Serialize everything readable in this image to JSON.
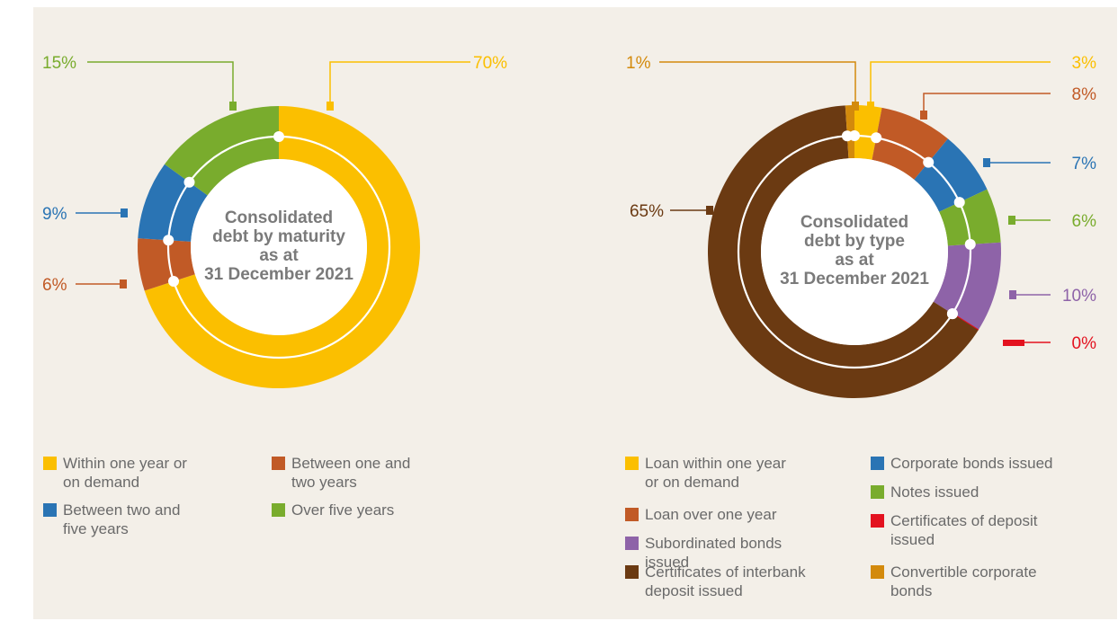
{
  "chart_data": [
    {
      "type": "pie",
      "title_lines": [
        "Consolidated",
        "debt by maturity",
        "as at",
        "31 December 2021"
      ],
      "segments": [
        {
          "key": "within1",
          "label": "Within one year or on demand",
          "label_lines": [
            "Within one year or",
            "on demand"
          ],
          "value": 70,
          "value_label": "70%",
          "color": "#fbbf00"
        },
        {
          "key": "between1and2",
          "label": "Between one and two years",
          "label_lines": [
            "Between one and",
            "two years"
          ],
          "value": 6,
          "value_label": "6%",
          "color": "#c15a26"
        },
        {
          "key": "between2and5",
          "label": "Between two and five years",
          "label_lines": [
            "Between two and",
            "five years"
          ],
          "value": 9,
          "value_label": "9%",
          "color": "#2a74b4"
        },
        {
          "key": "over5",
          "label": "Over five years",
          "label_lines": [
            "Over five years"
          ],
          "value": 15,
          "value_label": "15%",
          "color": "#79ac2d"
        }
      ]
    },
    {
      "type": "pie",
      "title_lines": [
        "Consolidated",
        "debt by type",
        "as at",
        "31 December 2021"
      ],
      "segments": [
        {
          "key": "loan_within",
          "label": "Loan within one year or on demand",
          "label_lines": [
            "Loan within one year",
            "or on demand"
          ],
          "value": 3,
          "value_label": "3%",
          "color": "#fbbf00"
        },
        {
          "key": "loan_over",
          "label": "Loan over one year",
          "label_lines": [
            "Loan over one year"
          ],
          "value": 8,
          "value_label": "8%",
          "color": "#c15a26"
        },
        {
          "key": "corporate_bonds",
          "label": "Corporate bonds issued",
          "label_lines": [
            "Corporate bonds issued"
          ],
          "value": 7,
          "value_label": "7%",
          "color": "#2a74b4"
        },
        {
          "key": "notes",
          "label": "Notes issued",
          "label_lines": [
            "Notes issued"
          ],
          "value": 6,
          "value_label": "6%",
          "color": "#79ac2d"
        },
        {
          "key": "subordinated",
          "label": "Subordinated bonds issued",
          "label_lines": [
            "Subordinated bonds issued"
          ],
          "value": 10,
          "value_label": "10%",
          "color": "#8e63a8"
        },
        {
          "key": "cert_deposit",
          "label": "Certificates of deposit issued",
          "label_lines": [
            "Certificates of deposit",
            "issued"
          ],
          "value": 0,
          "value_label": "0%",
          "color": "#e3121f"
        },
        {
          "key": "cert_interbank",
          "label": "Certificates of interbank deposit issued",
          "label_lines": [
            "Certificates of interbank",
            "deposit issued"
          ],
          "value": 65,
          "value_label": "65%",
          "color": "#6b3a12"
        },
        {
          "key": "convertible",
          "label": "Convertible corporate bonds",
          "label_lines": [
            "Convertible corporate",
            "bonds"
          ],
          "value": 1,
          "value_label": "1%",
          "color": "#d38a0c"
        }
      ]
    }
  ]
}
